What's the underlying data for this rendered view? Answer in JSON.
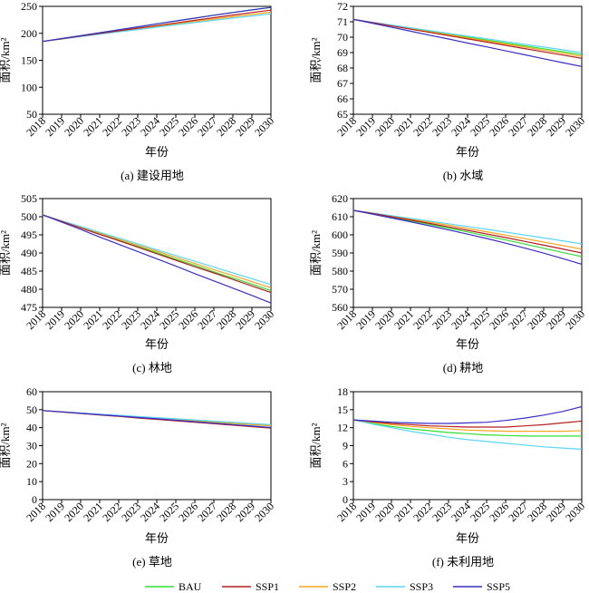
{
  "chart_data": [
    {
      "type": "line",
      "caption": "(a) 建设用地",
      "xlabel": "年份",
      "ylabel": "面积/km²",
      "x": [
        "2018",
        "2019",
        "2020",
        "2021",
        "2022",
        "2023",
        "2024",
        "2025",
        "2026",
        "2027",
        "2028",
        "2029",
        "2030"
      ],
      "yticks": [
        50,
        100,
        150,
        200,
        250
      ],
      "ylim": [
        50,
        250
      ],
      "series": [
        {
          "name": "BAU",
          "values": [
            185,
            190.3,
            195.7,
            201.1,
            206.5,
            212,
            217.5,
            222.9,
            228.2,
            233.5,
            238.6,
            243.4,
            248
          ]
        },
        {
          "name": "SSP1",
          "values": [
            185,
            189.8,
            194.8,
            199.7,
            204.6,
            209.5,
            214.4,
            219.3,
            224.2,
            229,
            233.8,
            238.5,
            243
          ]
        },
        {
          "name": "SSP2",
          "values": [
            185,
            189.3,
            194,
            198.8,
            203.5,
            208.2,
            212.9,
            217.5,
            222,
            226.5,
            230.8,
            235,
            239
          ]
        },
        {
          "name": "SSP3",
          "values": [
            185,
            189.5,
            193.8,
            198.2,
            202.6,
            207,
            211.4,
            215.7,
            220,
            224.2,
            228.3,
            232.2,
            236
          ]
        },
        {
          "name": "SSP5",
          "values": [
            185,
            190.3,
            195.7,
            201.1,
            206.5,
            212,
            217.5,
            222.9,
            228.2,
            233.5,
            238.6,
            243.4,
            248
          ]
        }
      ]
    },
    {
      "type": "line",
      "caption": "(b) 水域",
      "xlabel": "年份",
      "ylabel": "面积/km²",
      "x": [
        "2018",
        "2019",
        "2020",
        "2021",
        "2022",
        "2023",
        "2024",
        "2025",
        "2026",
        "2027",
        "2028",
        "2029",
        "2030"
      ],
      "yticks": [
        65,
        66,
        67,
        68,
        69,
        70,
        71,
        72
      ],
      "ylim": [
        65,
        72
      ],
      "series": [
        {
          "name": "BAU",
          "values": [
            71.15,
            70.96,
            70.77,
            70.58,
            70.39,
            70.2,
            70.01,
            69.82,
            69.63,
            69.44,
            69.25,
            69.06,
            68.87
          ]
        },
        {
          "name": "SSP1",
          "values": [
            71.15,
            70.94,
            70.73,
            70.52,
            70.31,
            70.1,
            69.89,
            69.68,
            69.47,
            69.26,
            69.05,
            68.84,
            68.63
          ]
        },
        {
          "name": "SSP2",
          "values": [
            71.15,
            70.95,
            70.75,
            70.55,
            70.35,
            70.15,
            69.95,
            69.76,
            69.56,
            69.36,
            69.16,
            68.96,
            68.76
          ]
        },
        {
          "name": "SSP3",
          "values": [
            71.15,
            70.97,
            70.79,
            70.61,
            70.43,
            70.25,
            70.07,
            69.9,
            69.72,
            69.54,
            69.36,
            69.18,
            69
          ]
        },
        {
          "name": "SSP5",
          "values": [
            71.15,
            70.9,
            70.64,
            70.39,
            70.13,
            69.88,
            69.62,
            69.37,
            69.11,
            68.86,
            68.6,
            68.35,
            68.1
          ]
        }
      ]
    },
    {
      "type": "line",
      "caption": "(c) 林地",
      "xlabel": "年份",
      "ylabel": "面积/km²",
      "x": [
        "2018",
        "2019",
        "2020",
        "2021",
        "2022",
        "2023",
        "2024",
        "2025",
        "2026",
        "2027",
        "2028",
        "2029",
        "2030"
      ],
      "yticks": [
        475,
        480,
        485,
        490,
        495,
        500,
        505
      ],
      "ylim": [
        475,
        505
      ],
      "series": [
        {
          "name": "BAU",
          "values": [
            500.5,
            498.8,
            497,
            495.3,
            493.5,
            491.8,
            490.1,
            488.3,
            486.6,
            484.8,
            483.1,
            481.4,
            479.6
          ]
        },
        {
          "name": "SSP1",
          "values": [
            500.5,
            498.7,
            496.9,
            495.1,
            493.4,
            491.6,
            489.8,
            488,
            486.2,
            484.5,
            482.7,
            480.9,
            479.1
          ]
        },
        {
          "name": "SSP2",
          "values": [
            500.5,
            498.8,
            497.2,
            495.5,
            493.8,
            492.1,
            490.5,
            488.8,
            487.1,
            485.4,
            483.8,
            482.1,
            480.4
          ]
        },
        {
          "name": "SSP3",
          "values": [
            500.5,
            498.9,
            497.3,
            495.7,
            494.1,
            492.5,
            490.9,
            489.3,
            487.7,
            486.1,
            484.5,
            482.9,
            481.3
          ]
        },
        {
          "name": "SSP5",
          "values": [
            500.5,
            498.5,
            496.5,
            494.4,
            492.4,
            490.4,
            488.4,
            486.4,
            484.3,
            482.3,
            480.3,
            478.3,
            476.2
          ]
        }
      ]
    },
    {
      "type": "line",
      "caption": "(d) 耕地",
      "xlabel": "年份",
      "ylabel": "面积/km²",
      "x": [
        "2018",
        "2019",
        "2020",
        "2021",
        "2022",
        "2023",
        "2024",
        "2025",
        "2026",
        "2027",
        "2028",
        "2029",
        "2030"
      ],
      "yticks": [
        560,
        570,
        580,
        590,
        600,
        610,
        620
      ],
      "ylim": [
        560,
        620
      ],
      "series": [
        {
          "name": "BAU",
          "values": [
            613.5,
            611.7,
            609.8,
            607.8,
            605.8,
            603.7,
            601.6,
            599.4,
            597.2,
            594.9,
            592.6,
            590.3,
            588
          ]
        },
        {
          "name": "SSP1",
          "values": [
            613.5,
            611.8,
            610,
            608.2,
            606.3,
            604.4,
            602.5,
            600.5,
            598.5,
            596.4,
            594.3,
            592.2,
            590
          ]
        },
        {
          "name": "SSP2",
          "values": [
            613.5,
            611.9,
            610.3,
            608.7,
            607,
            605.3,
            603.5,
            601.7,
            599.8,
            597.9,
            596,
            594.1,
            592.1
          ]
        },
        {
          "name": "SSP3",
          "values": [
            613.5,
            612.1,
            610.6,
            609.1,
            607.6,
            606.1,
            604.6,
            603.1,
            601.5,
            599.9,
            598.3,
            596.7,
            595
          ]
        },
        {
          "name": "SSP5",
          "values": [
            613.5,
            611.4,
            609.3,
            607.2,
            605,
            602.7,
            600.4,
            598,
            595.4,
            592.7,
            589.9,
            586.9,
            583.8
          ]
        }
      ]
    },
    {
      "type": "line",
      "caption": "(e) 草地",
      "xlabel": "年份",
      "ylabel": "面积/km²",
      "x": [
        "2018",
        "2019",
        "2020",
        "2021",
        "2022",
        "2023",
        "2024",
        "2025",
        "2026",
        "2027",
        "2028",
        "2029",
        "2030"
      ],
      "yticks": [
        0,
        10,
        20,
        30,
        40,
        50,
        60
      ],
      "ylim": [
        0,
        60
      ],
      "series": [
        {
          "name": "BAU",
          "values": [
            49.5,
            48.8,
            48.1,
            47.3,
            46.6,
            45.9,
            45.2,
            44.5,
            43.8,
            43.1,
            42.4,
            41.7,
            41
          ]
        },
        {
          "name": "SSP1",
          "values": [
            49.5,
            48.7,
            47.9,
            47.1,
            46.3,
            45.4,
            44.6,
            43.8,
            43,
            42.2,
            41.4,
            40.6,
            39.8
          ]
        },
        {
          "name": "SSP2",
          "values": [
            49.5,
            48.8,
            48.1,
            47.4,
            46.7,
            46,
            45.3,
            44.6,
            43.9,
            43.2,
            42.5,
            41.8,
            41.1
          ]
        },
        {
          "name": "SSP3",
          "values": [
            49.5,
            48.8,
            48.2,
            47.5,
            46.9,
            46.2,
            45.6,
            44.9,
            44.3,
            43.6,
            43,
            42.3,
            41.7
          ]
        },
        {
          "name": "SSP5",
          "values": [
            49.5,
            48.8,
            48,
            47.2,
            46.5,
            45.7,
            44.9,
            44.1,
            43.3,
            42.5,
            41.7,
            40.9,
            40.1
          ]
        }
      ]
    },
    {
      "type": "line",
      "caption": "(f) 未利用地",
      "xlabel": "年份",
      "ylabel": "面积/km²",
      "x": [
        "2018",
        "2019",
        "2020",
        "2021",
        "2022",
        "2023",
        "2024",
        "2025",
        "2026",
        "2027",
        "2028",
        "2029",
        "2030"
      ],
      "yticks": [
        0,
        3,
        6,
        9,
        12,
        15,
        18
      ],
      "ylim": [
        0,
        18
      ],
      "series": [
        {
          "name": "BAU",
          "values": [
            13.3,
            12.7,
            12.2,
            11.8,
            11.5,
            11.2,
            11,
            10.8,
            10.7,
            10.6,
            10.6,
            10.6,
            10.6
          ]
        },
        {
          "name": "SSP1",
          "values": [
            13.3,
            13,
            12.7,
            12.5,
            12.3,
            12.2,
            12.1,
            12.1,
            12.1,
            12.3,
            12.5,
            12.8,
            13.1
          ]
        },
        {
          "name": "SSP2",
          "values": [
            13.3,
            12.9,
            12.5,
            12.2,
            12,
            11.8,
            11.6,
            11.5,
            11.4,
            11.4,
            11.4,
            11.4,
            11.5
          ]
        },
        {
          "name": "SSP3",
          "values": [
            13.3,
            12.6,
            12,
            11.4,
            10.9,
            10.4,
            10,
            9.7,
            9.4,
            9.1,
            8.8,
            8.6,
            8.4
          ]
        },
        {
          "name": "SSP5",
          "values": [
            13.3,
            13.1,
            12.9,
            12.8,
            12.7,
            12.7,
            12.8,
            12.9,
            13.2,
            13.6,
            14.1,
            14.7,
            15.5
          ]
        }
      ]
    }
  ],
  "legend": [
    {
      "name": "BAU",
      "color": "#33dd33"
    },
    {
      "name": "SSP1",
      "color": "#b41f1f"
    },
    {
      "name": "SSP2",
      "color": "#f5a623"
    },
    {
      "name": "SSP3",
      "color": "#5bd5f5"
    },
    {
      "name": "SSP5",
      "color": "#3a2fc4"
    }
  ]
}
